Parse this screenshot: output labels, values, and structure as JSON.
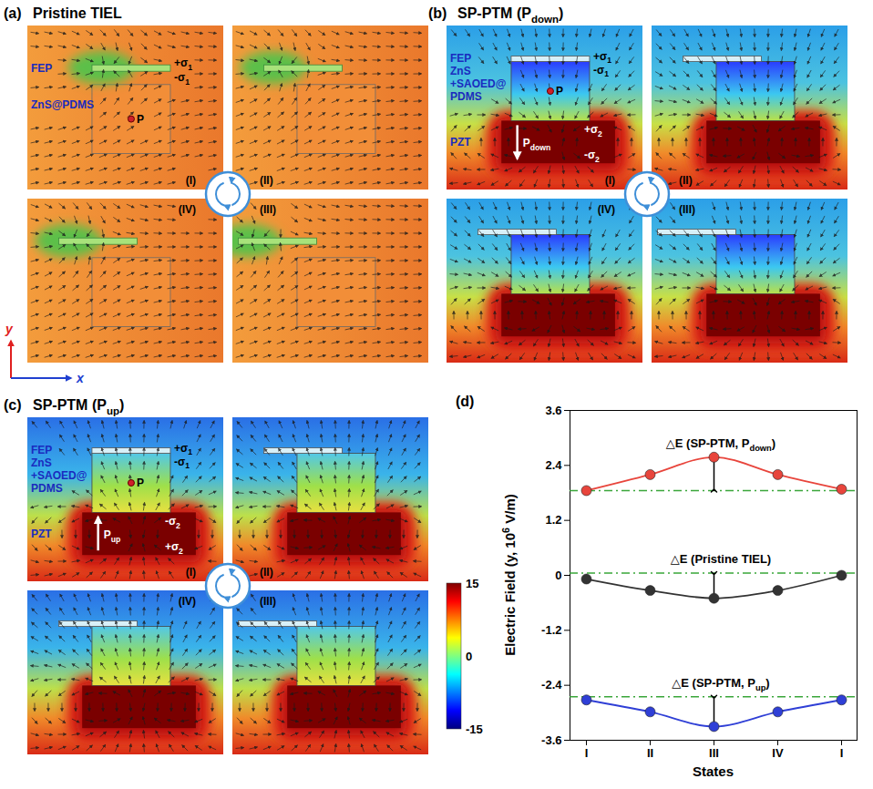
{
  "figure": {
    "axes_indicator": {
      "x": "x",
      "y": "y"
    },
    "panels": [
      {
        "letter": "(a)",
        "title": [
          {
            "text": "Pristine TIEL"
          }
        ],
        "type": "pristine",
        "states": [
          "(I)",
          "(II)",
          "(III)",
          "(IV)"
        ],
        "labels": {
          "electrode": "FEP",
          "layers": [
            "ZnS@PDMS"
          ],
          "point": "P",
          "sigma1_top": [
            {
              "text": "+σ"
            },
            {
              "sub": "1"
            }
          ],
          "sigma1_bottom": [
            {
              "text": "-σ"
            },
            {
              "sub": "1"
            }
          ]
        }
      },
      {
        "letter": "(b)",
        "title": [
          {
            "text": "SP-PTM (P"
          },
          {
            "sub": "down"
          },
          {
            "text": ")"
          }
        ],
        "type": "down",
        "states": [
          "(I)",
          "(II)",
          "(III)",
          "(IV)"
        ],
        "labels": {
          "electrode": "FEP",
          "layers": [
            "ZnS",
            "+SAOED@",
            "PDMS"
          ],
          "point": "P",
          "ferroelectric": "PZT",
          "polarization": [
            {
              "text": "P"
            },
            {
              "sub": "down"
            }
          ],
          "sigma1_top": [
            {
              "text": "+σ"
            },
            {
              "sub": "1"
            }
          ],
          "sigma1_bottom": [
            {
              "text": "-σ"
            },
            {
              "sub": "1"
            }
          ],
          "sigma2_top": [
            {
              "text": "+σ"
            },
            {
              "sub": "2"
            }
          ],
          "sigma2_bottom": [
            {
              "text": "-σ"
            },
            {
              "sub": "2"
            }
          ]
        }
      },
      {
        "letter": "(c)",
        "title": [
          {
            "text": "SP-PTM (P"
          },
          {
            "sub": "up"
          },
          {
            "text": ")"
          }
        ],
        "type": "up",
        "states": [
          "(I)",
          "(II)",
          "(III)",
          "(IV)"
        ],
        "labels": {
          "electrode": "FEP",
          "layers": [
            "ZnS",
            "+SAOED@",
            "PDMS"
          ],
          "point": "P",
          "ferroelectric": "PZT",
          "polarization": [
            {
              "text": "P"
            },
            {
              "sub": "up"
            }
          ],
          "sigma1_top": [
            {
              "text": "+σ"
            },
            {
              "sub": "1"
            }
          ],
          "sigma1_bottom": [
            {
              "text": "-σ"
            },
            {
              "sub": "1"
            }
          ],
          "sigma2_top": [
            {
              "text": "-σ"
            },
            {
              "sub": "2"
            }
          ],
          "sigma2_bottom": [
            {
              "text": "+σ"
            },
            {
              "sub": "2"
            }
          ]
        }
      }
    ],
    "colorbar": {
      "range": [
        -15,
        15
      ],
      "ticks": [
        15,
        0,
        -15
      ]
    }
  },
  "chart_data": {
    "type": "line",
    "letter": "(d)",
    "xlabel": "States",
    "ylabel": [
      {
        "text": "Electric Field (y, 10"
      },
      {
        "sup": "6"
      },
      {
        "text": " V/m)"
      }
    ],
    "categories": [
      "I",
      "II",
      "III",
      "IV",
      "I"
    ],
    "ylim": [
      -3.6,
      3.6
    ],
    "yticks": [
      -3.6,
      -2.4,
      -1.2,
      0,
      1.2,
      2.4,
      3.6
    ],
    "marker": "circle",
    "series": [
      {
        "name": [
          {
            "text": "△E (SP-PTM, P"
          },
          {
            "sub": "down"
          },
          {
            "text": ")"
          }
        ],
        "color": "#e8453c",
        "values": [
          1.85,
          2.2,
          2.58,
          2.2,
          1.88
        ],
        "baseline": 1.85
      },
      {
        "name": [
          {
            "text": "△E (Pristine TIEL)"
          }
        ],
        "color": "#333333",
        "values": [
          -0.08,
          -0.33,
          -0.5,
          -0.33,
          0.0
        ],
        "baseline": 0.05
      },
      {
        "name": [
          {
            "text": "△E (SP-PTM, P"
          },
          {
            "sub": "up"
          },
          {
            "text": ")"
          }
        ],
        "color": "#2f3fd6",
        "values": [
          -2.72,
          -2.98,
          -3.3,
          -2.98,
          -2.72
        ],
        "baseline": -2.65
      }
    ]
  }
}
